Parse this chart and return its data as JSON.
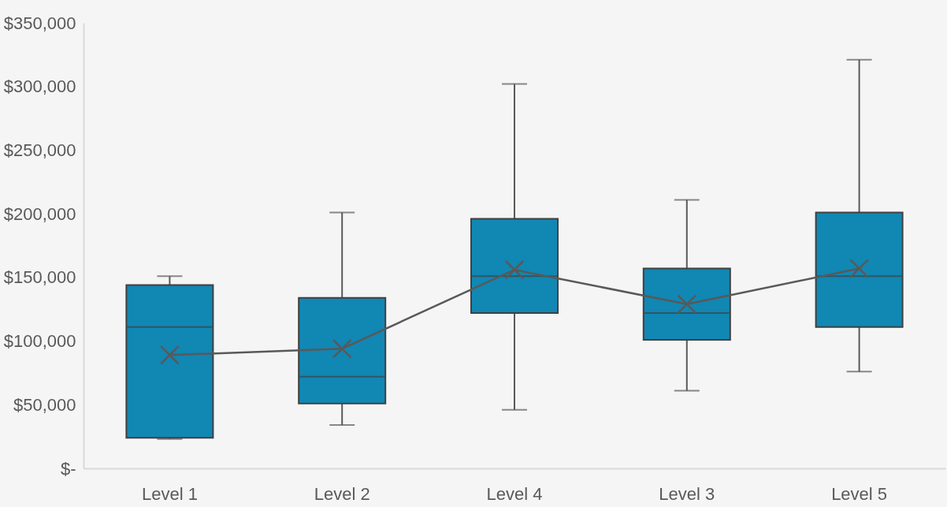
{
  "chart_data": {
    "type": "box",
    "categories": [
      "Level 1",
      "Level 2",
      "Level 4",
      "Level 3",
      "Level 5"
    ],
    "ylim": [
      0,
      350000
    ],
    "yticks": [
      {
        "value": 0,
        "label": "$-"
      },
      {
        "value": 50000,
        "label": "$50,000"
      },
      {
        "value": 100000,
        "label": "$100,000"
      },
      {
        "value": 150000,
        "label": "$150,000"
      },
      {
        "value": 200000,
        "label": "$200,000"
      },
      {
        "value": 250000,
        "label": "$250,000"
      },
      {
        "value": 300000,
        "label": "$300,000"
      },
      {
        "value": 350000,
        "label": "$350,000"
      }
    ],
    "grid": false,
    "marker": "cross",
    "series": [
      {
        "color": "#1187b3",
        "boxes": [
          {
            "low": 23000,
            "q1": 24000,
            "median": 111000,
            "q3": 144000,
            "high": 151000
          },
          {
            "low": 34000,
            "q1": 51000,
            "median": 72000,
            "q3": 134000,
            "high": 201000
          },
          {
            "low": 46000,
            "q1": 122000,
            "median": 151000,
            "q3": 196000,
            "high": 302000
          },
          {
            "low": 61000,
            "q1": 101000,
            "median": 122000,
            "q3": 157000,
            "high": 211000
          },
          {
            "low": 76000,
            "q1": 111000,
            "median": 151000,
            "q3": 201000,
            "high": 321000
          }
        ]
      },
      {
        "type": "line",
        "color": "#595959",
        "values": [
          89000,
          94000,
          156000,
          129000,
          157000
        ]
      }
    ]
  }
}
